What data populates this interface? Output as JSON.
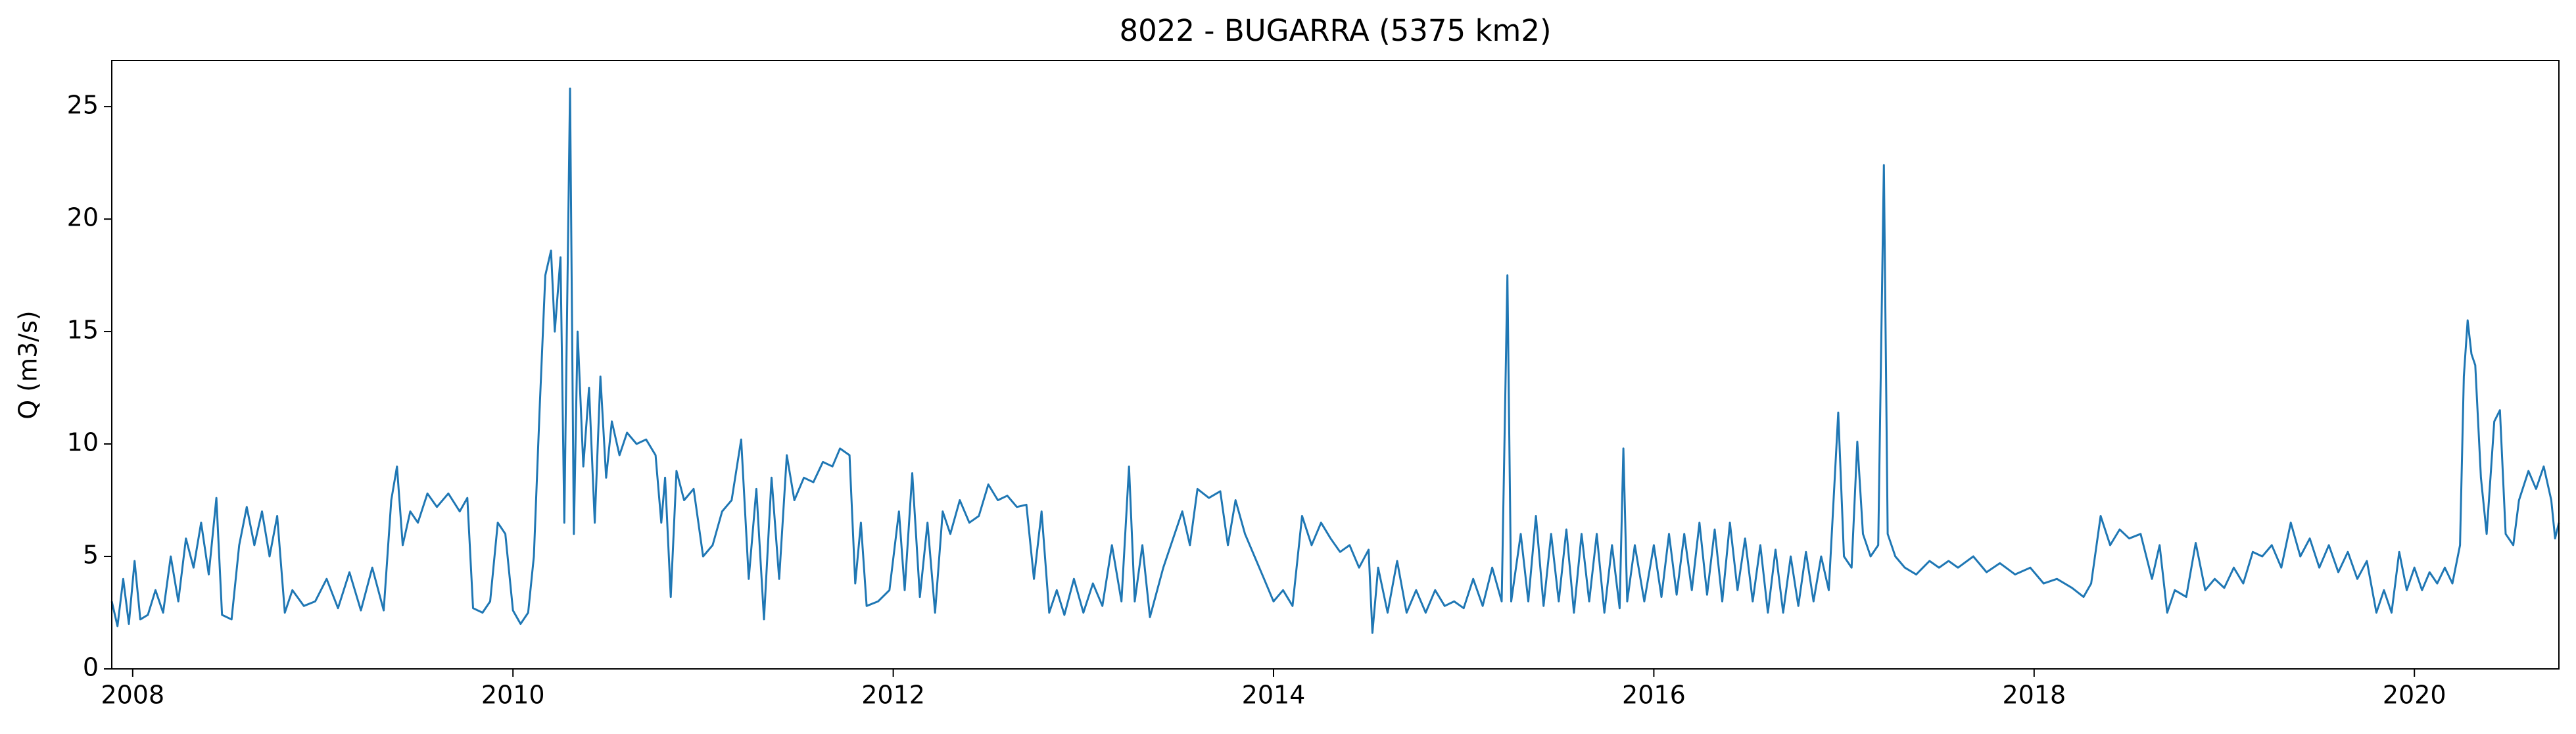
{
  "chart_data": {
    "type": "line",
    "title": "8022 - BUGARRA (5375 km2)",
    "ylabel": "Q (m3/s)",
    "color": "#1f77b4",
    "xlim": [
      2007.89,
      2020.76
    ],
    "xticks": [
      2008,
      2010,
      2012,
      2014,
      2016,
      2018,
      2020
    ],
    "ylim": [
      0,
      27.05
    ],
    "yticks": [
      0,
      5,
      10,
      15,
      20,
      25
    ],
    "grid": false,
    "x": [
      2007.89,
      2007.92,
      2007.95,
      2007.98,
      2008.01,
      2008.04,
      2008.08,
      2008.12,
      2008.16,
      2008.2,
      2008.24,
      2008.28,
      2008.32,
      2008.36,
      2008.4,
      2008.44,
      2008.47,
      2008.52,
      2008.56,
      2008.6,
      2008.64,
      2008.68,
      2008.72,
      2008.76,
      2008.8,
      2008.84,
      2008.9,
      2008.96,
      2009.02,
      2009.08,
      2009.14,
      2009.2,
      2009.26,
      2009.32,
      2009.36,
      2009.39,
      2009.42,
      2009.46,
      2009.5,
      2009.55,
      2009.6,
      2009.66,
      2009.72,
      2009.76,
      2009.79,
      2009.84,
      2009.88,
      2009.92,
      2009.96,
      2010.0,
      2010.04,
      2010.08,
      2010.11,
      2010.14,
      2010.17,
      2010.2,
      2010.22,
      2010.25,
      2010.27,
      2010.3,
      2010.32,
      2010.34,
      2010.37,
      2010.4,
      2010.43,
      2010.46,
      2010.49,
      2010.52,
      2010.56,
      2010.6,
      2010.65,
      2010.7,
      2010.75,
      2010.78,
      2010.8,
      2010.83,
      2010.86,
      2010.9,
      2010.95,
      2011.0,
      2011.05,
      2011.1,
      2011.15,
      2011.2,
      2011.24,
      2011.28,
      2011.32,
      2011.36,
      2011.4,
      2011.44,
      2011.48,
      2011.53,
      2011.58,
      2011.63,
      2011.68,
      2011.72,
      2011.77,
      2011.8,
      2011.83,
      2011.86,
      2011.92,
      2011.98,
      2012.03,
      2012.06,
      2012.1,
      2012.14,
      2012.18,
      2012.22,
      2012.26,
      2012.3,
      2012.35,
      2012.4,
      2012.45,
      2012.5,
      2012.55,
      2012.6,
      2012.65,
      2012.7,
      2012.74,
      2012.78,
      2012.82,
      2012.86,
      2012.9,
      2012.95,
      2013.0,
      2013.05,
      2013.1,
      2013.15,
      2013.2,
      2013.24,
      2013.27,
      2013.31,
      2013.35,
      2013.42,
      2013.48,
      2013.52,
      2013.56,
      2013.6,
      2013.66,
      2013.72,
      2013.76,
      2013.8,
      2013.85,
      2013.9,
      2013.95,
      2014.0,
      2014.05,
      2014.1,
      2014.15,
      2014.2,
      2014.25,
      2014.3,
      2014.35,
      2014.4,
      2014.45,
      2014.5,
      2014.52,
      2014.55,
      2014.6,
      2014.65,
      2014.7,
      2014.75,
      2014.8,
      2014.85,
      2014.9,
      2014.95,
      2015.0,
      2015.05,
      2015.1,
      2015.15,
      2015.2,
      2015.23,
      2015.25,
      2015.3,
      2015.34,
      2015.38,
      2015.42,
      2015.46,
      2015.5,
      2015.54,
      2015.58,
      2015.62,
      2015.66,
      2015.7,
      2015.74,
      2015.78,
      2015.82,
      2015.84,
      2015.86,
      2015.9,
      2015.95,
      2016.0,
      2016.04,
      2016.08,
      2016.12,
      2016.16,
      2016.2,
      2016.24,
      2016.28,
      2016.32,
      2016.36,
      2016.4,
      2016.44,
      2016.48,
      2016.52,
      2016.56,
      2016.6,
      2016.64,
      2016.68,
      2016.72,
      2016.76,
      2016.8,
      2016.84,
      2016.88,
      2016.92,
      2016.97,
      2017.0,
      2017.04,
      2017.07,
      2017.1,
      2017.14,
      2017.18,
      2017.21,
      2017.23,
      2017.27,
      2017.32,
      2017.38,
      2017.45,
      2017.5,
      2017.55,
      2017.6,
      2017.68,
      2017.75,
      2017.82,
      2017.9,
      2017.98,
      2018.05,
      2018.12,
      2018.2,
      2018.26,
      2018.3,
      2018.35,
      2018.4,
      2018.45,
      2018.5,
      2018.56,
      2018.62,
      2018.66,
      2018.7,
      2018.74,
      2018.8,
      2018.85,
      2018.9,
      2018.95,
      2019.0,
      2019.05,
      2019.1,
      2019.15,
      2019.2,
      2019.25,
      2019.3,
      2019.35,
      2019.4,
      2019.45,
      2019.5,
      2019.55,
      2019.6,
      2019.65,
      2019.7,
      2019.75,
      2019.8,
      2019.84,
      2019.88,
      2019.92,
      2019.96,
      2020.0,
      2020.04,
      2020.08,
      2020.12,
      2020.16,
      2020.2,
      2020.24,
      2020.26,
      2020.28,
      2020.3,
      2020.32,
      2020.35,
      2020.38,
      2020.42,
      2020.45,
      2020.48,
      2020.52,
      2020.55,
      2020.6,
      2020.64,
      2020.68,
      2020.72,
      2020.74,
      2020.76
    ],
    "values": [
      3.0,
      1.9,
      4.0,
      2.0,
      4.8,
      2.2,
      2.4,
      3.5,
      2.5,
      5.0,
      3.0,
      5.8,
      4.5,
      6.5,
      4.2,
      7.6,
      2.4,
      2.2,
      5.5,
      7.2,
      5.5,
      7.0,
      5.0,
      6.8,
      2.5,
      3.5,
      2.8,
      3.0,
      4.0,
      2.7,
      4.3,
      2.6,
      4.5,
      2.6,
      7.5,
      9.0,
      5.5,
      7.0,
      6.5,
      7.8,
      7.2,
      7.8,
      7.0,
      7.6,
      2.7,
      2.5,
      3.0,
      6.5,
      6.0,
      2.6,
      2.0,
      2.5,
      5.0,
      11.5,
      17.5,
      18.6,
      15.0,
      18.3,
      6.5,
      25.8,
      6.0,
      15.0,
      9.0,
      12.5,
      6.5,
      13.0,
      8.5,
      11.0,
      9.5,
      10.5,
      10.0,
      10.2,
      9.5,
      6.5,
      8.5,
      3.2,
      8.8,
      7.5,
      8.0,
      5.0,
      5.5,
      7.0,
      7.5,
      10.2,
      4.0,
      8.0,
      2.2,
      8.5,
      4.0,
      9.5,
      7.5,
      8.5,
      8.3,
      9.2,
      9.0,
      9.8,
      9.5,
      3.8,
      6.5,
      2.8,
      3.0,
      3.5,
      7.0,
      3.5,
      8.7,
      3.2,
      6.5,
      2.5,
      7.0,
      6.0,
      7.5,
      6.5,
      6.8,
      8.2,
      7.5,
      7.7,
      7.2,
      7.3,
      4.0,
      7.0,
      2.5,
      3.5,
      2.4,
      4.0,
      2.5,
      3.8,
      2.8,
      5.5,
      3.0,
      9.0,
      3.0,
      5.5,
      2.3,
      4.5,
      6.0,
      7.0,
      5.5,
      8.0,
      7.6,
      7.9,
      5.5,
      7.5,
      6.0,
      5.0,
      4.0,
      3.0,
      3.5,
      2.8,
      6.8,
      5.5,
      6.5,
      5.8,
      5.2,
      5.5,
      4.5,
      5.3,
      1.6,
      4.5,
      2.5,
      4.8,
      2.5,
      3.5,
      2.5,
      3.5,
      2.8,
      3.0,
      2.7,
      4.0,
      2.8,
      4.5,
      3.0,
      17.5,
      3.0,
      6.0,
      3.0,
      6.8,
      2.8,
      6.0,
      3.0,
      6.2,
      2.5,
      6.0,
      3.0,
      6.0,
      2.5,
      5.5,
      2.7,
      9.8,
      3.0,
      5.5,
      3.0,
      5.5,
      3.2,
      6.0,
      3.3,
      6.0,
      3.5,
      6.5,
      3.3,
      6.2,
      3.0,
      6.5,
      3.5,
      5.8,
      3.0,
      5.5,
      2.5,
      5.3,
      2.5,
      5.0,
      2.8,
      5.2,
      3.0,
      5.0,
      3.5,
      11.4,
      5.0,
      4.5,
      10.1,
      6.0,
      5.0,
      5.5,
      22.4,
      6.0,
      5.0,
      4.5,
      4.2,
      4.8,
      4.5,
      4.8,
      4.5,
      5.0,
      4.3,
      4.7,
      4.2,
      4.5,
      3.8,
      4.0,
      3.6,
      3.2,
      3.8,
      6.8,
      5.5,
      6.2,
      5.8,
      6.0,
      4.0,
      5.5,
      2.5,
      3.5,
      3.2,
      5.6,
      3.5,
      4.0,
      3.6,
      4.5,
      3.8,
      5.2,
      5.0,
      5.5,
      4.5,
      6.5,
      5.0,
      5.8,
      4.5,
      5.5,
      4.3,
      5.2,
      4.0,
      4.8,
      2.5,
      3.5,
      2.5,
      5.2,
      3.5,
      4.5,
      3.5,
      4.3,
      3.8,
      4.5,
      3.8,
      5.5,
      13.0,
      15.5,
      14.0,
      13.5,
      8.5,
      6.0,
      11.0,
      11.5,
      6.0,
      5.5,
      7.5,
      8.8,
      8.0,
      9.0,
      7.5,
      5.8,
      6.5
    ]
  }
}
